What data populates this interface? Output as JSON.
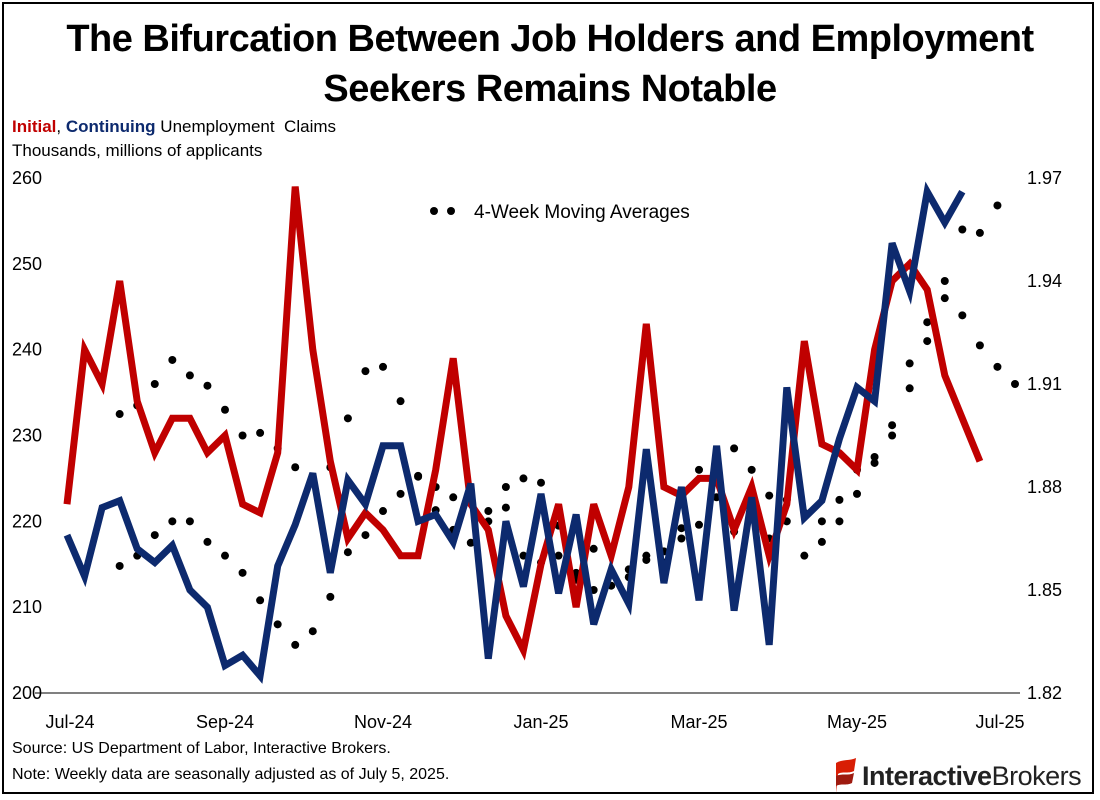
{
  "title": "The Bifurcation Between Job Holders and Employment Seekers Remains Notable",
  "subtitle": {
    "initial": "Initial",
    "sep": ", ",
    "continuing": "Continuing",
    "rest": " Unemployment  Claims"
  },
  "units": "Thousands, millions of applicants",
  "source": "Source: US Department of Labor, Interactive Brokers.",
  "note": "Note: Weekly data are seasonally adjusted as of July 5, 2025.",
  "logo": {
    "part1": "Interactive",
    "part2": "Brokers"
  },
  "colors": {
    "initial": "#c00000",
    "continuing": "#0d2a6e",
    "moving_average": "#000000"
  },
  "chart_data": {
    "type": "line",
    "x_tick_labels": [
      "Jul-24",
      "Sep-24",
      "Nov-24",
      "Jan-25",
      "Mar-25",
      "May-25",
      "Jul-25"
    ],
    "x_tick_week_index": [
      0,
      9,
      18,
      27,
      36,
      45,
      54
    ],
    "left_axis": {
      "ylim": [
        200,
        260
      ],
      "ticks": [
        "200",
        "210",
        "220",
        "230",
        "240",
        "250",
        "260"
      ]
    },
    "right_axis": {
      "ylim": [
        1.82,
        1.97
      ],
      "ticks": [
        "1.82",
        "1.85",
        "1.88",
        "1.91",
        "1.94",
        "1.97"
      ]
    },
    "legend": {
      "label": "4-Week Moving Averages",
      "placement": "top-center"
    },
    "grid": false,
    "series": [
      {
        "name": "Initial",
        "axis": "left",
        "values": [
          222,
          240,
          236,
          248,
          234,
          228,
          232,
          232,
          228,
          230,
          222,
          221,
          228,
          259,
          240,
          227,
          218,
          221,
          219,
          216,
          216,
          226,
          239,
          222,
          219,
          209,
          205,
          215,
          222,
          210,
          222,
          216,
          224,
          243,
          224,
          223,
          225,
          225,
          219,
          224,
          216,
          222,
          241,
          229,
          228,
          226,
          240,
          248,
          250,
          247,
          237,
          232,
          227
        ]
      },
      {
        "name": "Continuing",
        "axis": "right",
        "values": [
          1.866,
          1.854,
          1.874,
          1.876,
          1.862,
          1.858,
          1.863,
          1.85,
          1.845,
          1.828,
          1.831,
          1.825,
          1.857,
          1.869,
          1.884,
          1.855,
          1.882,
          1.875,
          1.892,
          1.892,
          1.87,
          1.872,
          1.864,
          1.881,
          1.83,
          1.87,
          1.851,
          1.878,
          1.849,
          1.872,
          1.84,
          1.856,
          1.846,
          1.891,
          1.852,
          1.88,
          1.847,
          1.892,
          1.844,
          1.877,
          1.834,
          1.909,
          1.871,
          1.876,
          1.894,
          1.909,
          1.905,
          1.951,
          1.937,
          1.966,
          1.957,
          1.966
        ]
      },
      {
        "name": "Initial 4-Week Moving Average",
        "axis": "left",
        "values": [
          232.5,
          233.5,
          236.0,
          238.8,
          237.0,
          235.8,
          233.0,
          230.0,
          230.3,
          228.5,
          226.3,
          224.5,
          226.3,
          232.0,
          237.5,
          238.0,
          234.0,
          225.3,
          221.3,
          219.0,
          217.5,
          220.0,
          224.0,
          225.0,
          224.5,
          219.5,
          214.0,
          212.0,
          212.5,
          213.5,
          215.5,
          216.5,
          218.0,
          226.0,
          227.0,
          228.5,
          226.0,
          223.0,
          222.5,
          221.0,
          220.0,
          222.5,
          226.0,
          227.5,
          230.0,
          235.5,
          241.0,
          246.0,
          244.0,
          240.5,
          238.0,
          236.0
        ]
      },
      {
        "name": "Continuing 4-Week Moving Average",
        "axis": "right",
        "values": [
          1.857,
          1.86,
          1.866,
          1.87,
          1.87,
          1.864,
          1.86,
          1.855,
          1.847,
          1.84,
          1.834,
          1.838,
          1.848,
          1.861,
          1.866,
          1.873,
          1.878,
          1.883,
          1.88,
          1.877,
          1.878,
          1.873,
          1.874,
          1.86,
          1.858,
          1.86,
          1.853,
          1.862,
          1.861,
          1.856,
          1.86,
          1.858,
          1.868,
          1.869,
          1.877,
          1.867,
          1.873,
          1.865,
          1.87,
          1.86,
          1.864,
          1.87,
          1.878,
          1.887,
          1.898,
          1.916,
          1.928,
          1.94,
          1.955,
          1.954,
          1.962
        ]
      }
    ]
  }
}
